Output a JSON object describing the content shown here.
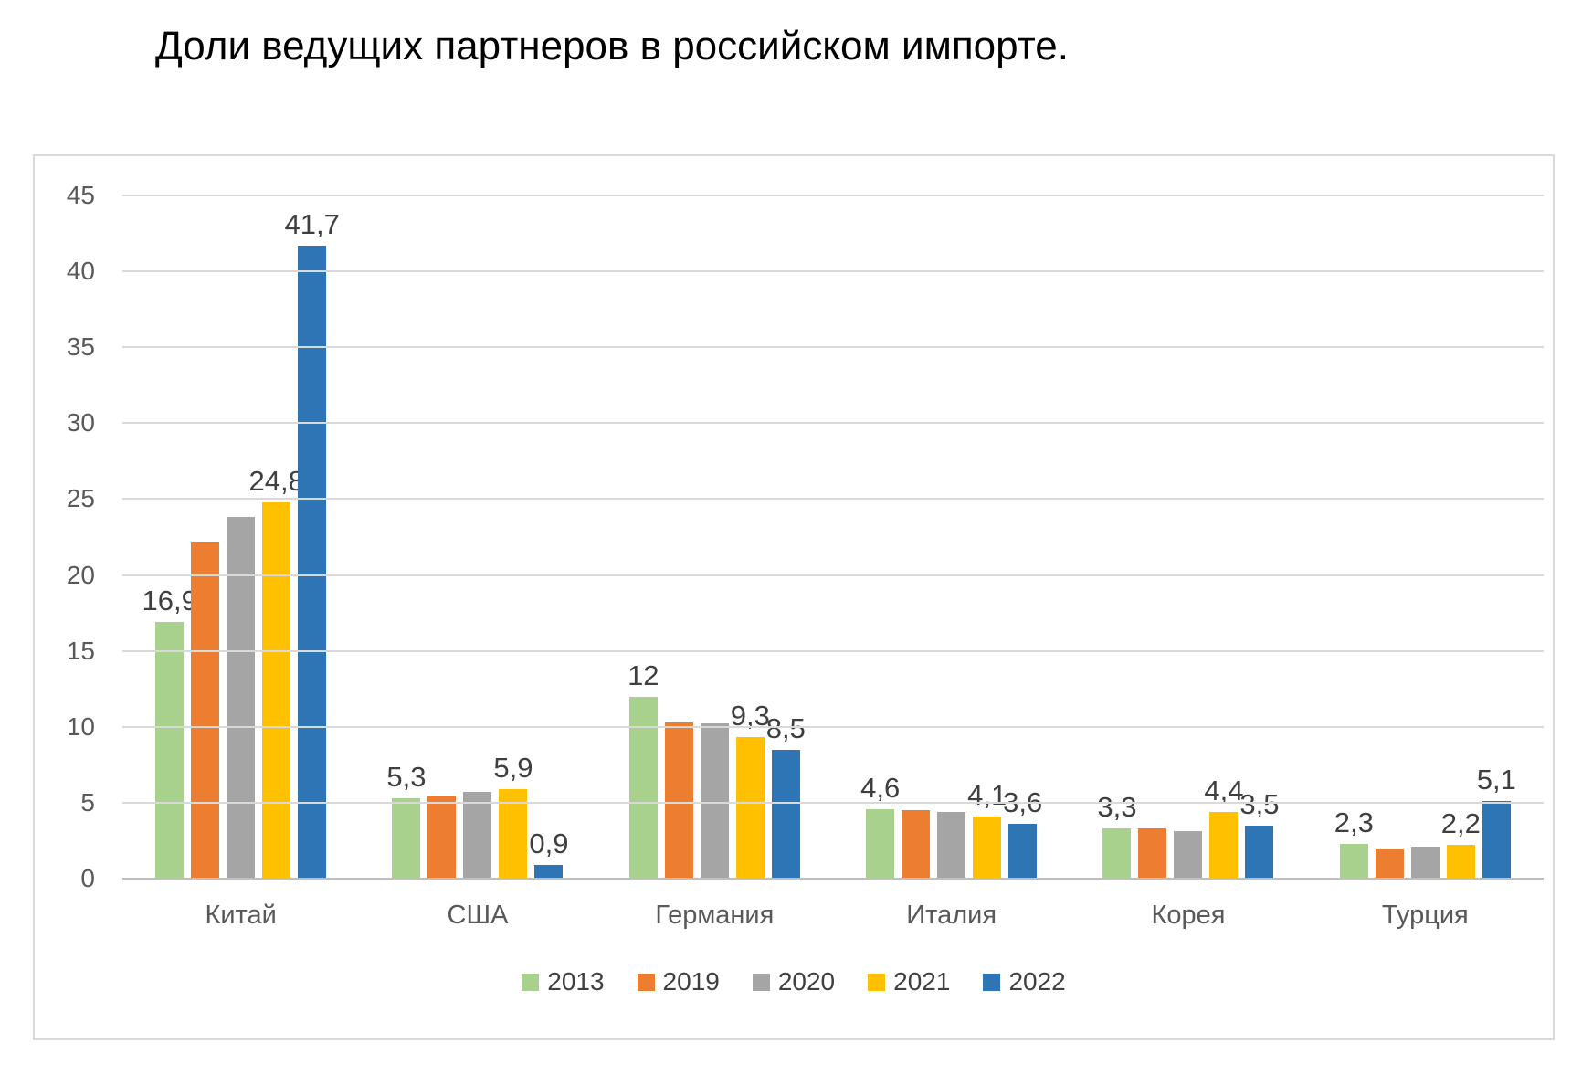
{
  "page": {
    "background_color": "#FFFFFF",
    "chart_border_color": "#D9D9D9"
  },
  "chart_data": {
    "type": "bar",
    "title": "Доли ведущих партнеров в российском импорте.",
    "categories": [
      "Китай",
      "США",
      "Германия",
      "Италия",
      "Корея",
      "Турция"
    ],
    "series": [
      {
        "name": "2013",
        "color": "#A9D18E",
        "values": [
          16.9,
          5.3,
          12,
          4.6,
          3.3,
          2.3
        ],
        "labels": [
          "16,9",
          "5,3",
          "12",
          "4,6",
          "3,3",
          "2,3"
        ]
      },
      {
        "name": "2019",
        "color": "#ED7D31",
        "values": [
          22.2,
          5.4,
          10.3,
          4.5,
          3.3,
          1.9
        ],
        "labels": null
      },
      {
        "name": "2020",
        "color": "#A5A5A5",
        "values": [
          23.8,
          5.7,
          10.2,
          4.4,
          3.1,
          2.1
        ],
        "labels": null
      },
      {
        "name": "2021",
        "color": "#FFC000",
        "values": [
          24.8,
          5.9,
          9.3,
          4.1,
          4.4,
          2.2
        ],
        "labels": [
          "24,8",
          "5,9",
          "9,3",
          "4,1",
          "4,4",
          "2,2"
        ]
      },
      {
        "name": "2022",
        "color": "#2E75B6",
        "values": [
          41.7,
          0.9,
          8.5,
          3.6,
          3.5,
          5.1
        ],
        "labels": [
          "41,7",
          "0,9",
          "8,5",
          "3,6",
          "3,5",
          "5,1"
        ]
      }
    ],
    "xlabel": "",
    "ylabel": "",
    "ylim": [
      0,
      45
    ],
    "yticks": [
      0,
      5,
      10,
      15,
      20,
      25,
      30,
      35,
      40,
      45
    ],
    "grid": true,
    "gridline_color": "#D9D9D9",
    "baseline_color": "#BFBFBF",
    "axis_label_color": "#595959",
    "value_label_color": "#3F3F3F",
    "legend_position": "bottom",
    "legend_text_color": "#404040"
  }
}
